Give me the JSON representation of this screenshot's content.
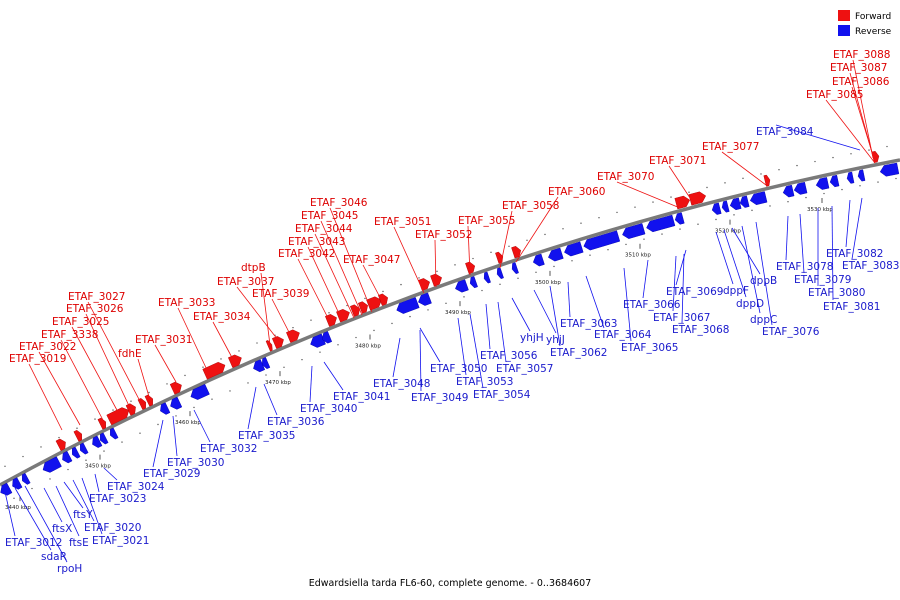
{
  "caption": "Edwardsiella tarda FL6-60, complete genome. - 0..3684607",
  "legend": [
    {
      "label": "Forward",
      "color": "#ee1111"
    },
    {
      "label": "Reverse",
      "color": "#1111ee"
    }
  ],
  "colors": {
    "forward": "#ee1111",
    "reverse": "#1111ee",
    "forward_label": "#dd0000",
    "reverse_label": "#1a1acc",
    "axis": "#888888"
  },
  "position_ticks": [
    "3440 kbp",
    "3450 kbp",
    "3460 kbp",
    "3470 kbp",
    "3480 kbp",
    "3490 kbp",
    "3500 kbp",
    "3510 kbp",
    "3520 kbp",
    "3530 kbp"
  ],
  "forward_genes": [
    "ETAF_3019",
    "ETAF_3022",
    "ETAF_3338",
    "ETAF_3025",
    "ETAF_3026",
    "ETAF_3027",
    "fdhE",
    "ETAF_3031",
    "ETAF_3033",
    "ETAF_3034",
    "dtpB",
    "ETAF_3037",
    "ETAF_3039",
    "ETAF_3042",
    "ETAF_3043",
    "ETAF_3044",
    "ETAF_3045",
    "ETAF_3046",
    "ETAF_3047",
    "ETAF_3051",
    "ETAF_3052",
    "ETAF_3055",
    "ETAF_3058",
    "ETAF_3060",
    "ETAF_3070",
    "ETAF_3071",
    "ETAF_3077",
    "ETAF_3085",
    "ETAF_3086",
    "ETAF_3087",
    "ETAF_3088"
  ],
  "reverse_genes": [
    "ETAF_3012",
    "sdaR",
    "rpoH",
    "ftsX",
    "ftsE",
    "ftsY",
    "ETAF_3020",
    "ETAF_3021",
    "ETAF_3023",
    "ETAF_3024",
    "ETAF_3029",
    "ETAF_3030",
    "ETAF_3032",
    "ETAF_3035",
    "ETAF_3036",
    "ETAF_3040",
    "ETAF_3041",
    "ETAF_3048",
    "ETAF_3049",
    "ETAF_3050",
    "ETAF_3053",
    "ETAF_3054",
    "ETAF_3056",
    "ETAF_3057",
    "yhjH",
    "yhjJ",
    "ETAF_3062",
    "ETAF_3063",
    "ETAF_3064",
    "ETAF_3065",
    "ETAF_3066",
    "ETAF_3067",
    "ETAF_3068",
    "ETAF_3069",
    "dppF",
    "dppD",
    "dppB",
    "dppC",
    "ETAF_3076",
    "ETAF_3078",
    "ETAF_3079",
    "ETAF_3080",
    "ETAF_3081",
    "ETAF_3082",
    "ETAF_3083",
    "ETAF_3084"
  ]
}
